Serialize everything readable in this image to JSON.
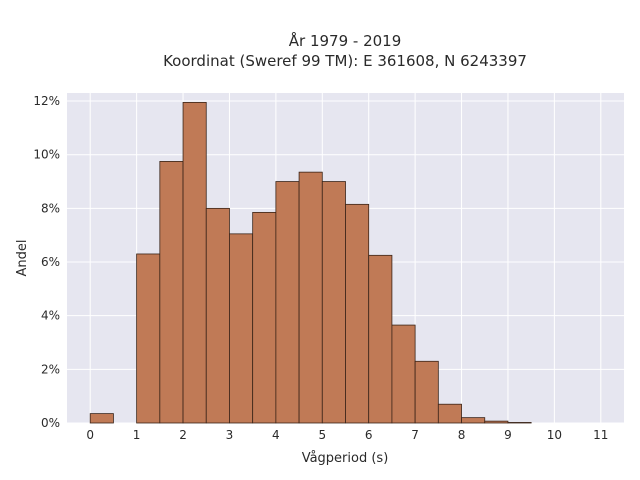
{
  "chart_data": {
    "type": "bar",
    "title_line1": "År 1979 - 2019",
    "title_line2": "Koordinat (Sweref 99 TM): E 361608, N 6243397",
    "xlabel": "Vågperiod (s)",
    "ylabel": "Andel",
    "xlim": [
      -0.5,
      11.5
    ],
    "ylim": [
      0,
      12.3
    ],
    "xticks": [
      0,
      1,
      2,
      3,
      4,
      5,
      6,
      7,
      8,
      9,
      10,
      11
    ],
    "yticks": [
      0,
      2,
      4,
      6,
      8,
      10,
      12
    ],
    "ytick_labels": [
      "0%",
      "2%",
      "4%",
      "6%",
      "8%",
      "10%",
      "12%"
    ],
    "bin_width": 0.5,
    "bins": [
      {
        "start": 0.0,
        "value": 0.35
      },
      {
        "start": 1.0,
        "value": 6.3
      },
      {
        "start": 1.5,
        "value": 9.75
      },
      {
        "start": 2.0,
        "value": 11.95
      },
      {
        "start": 2.5,
        "value": 8.0
      },
      {
        "start": 3.0,
        "value": 7.05
      },
      {
        "start": 3.5,
        "value": 7.85
      },
      {
        "start": 4.0,
        "value": 9.0
      },
      {
        "start": 4.5,
        "value": 9.35
      },
      {
        "start": 5.0,
        "value": 9.0
      },
      {
        "start": 5.5,
        "value": 8.15
      },
      {
        "start": 6.0,
        "value": 6.25
      },
      {
        "start": 6.5,
        "value": 3.65
      },
      {
        "start": 7.0,
        "value": 2.3
      },
      {
        "start": 7.5,
        "value": 0.7
      },
      {
        "start": 8.0,
        "value": 0.2
      },
      {
        "start": 8.5,
        "value": 0.07
      },
      {
        "start": 9.0,
        "value": 0.02
      }
    ],
    "colors": {
      "bar_fill": "#c07a56",
      "bar_stroke": "#3a2418",
      "plot_bg": "#e6e6f0",
      "grid": "#ffffff"
    },
    "grid": true,
    "legend": "none"
  }
}
